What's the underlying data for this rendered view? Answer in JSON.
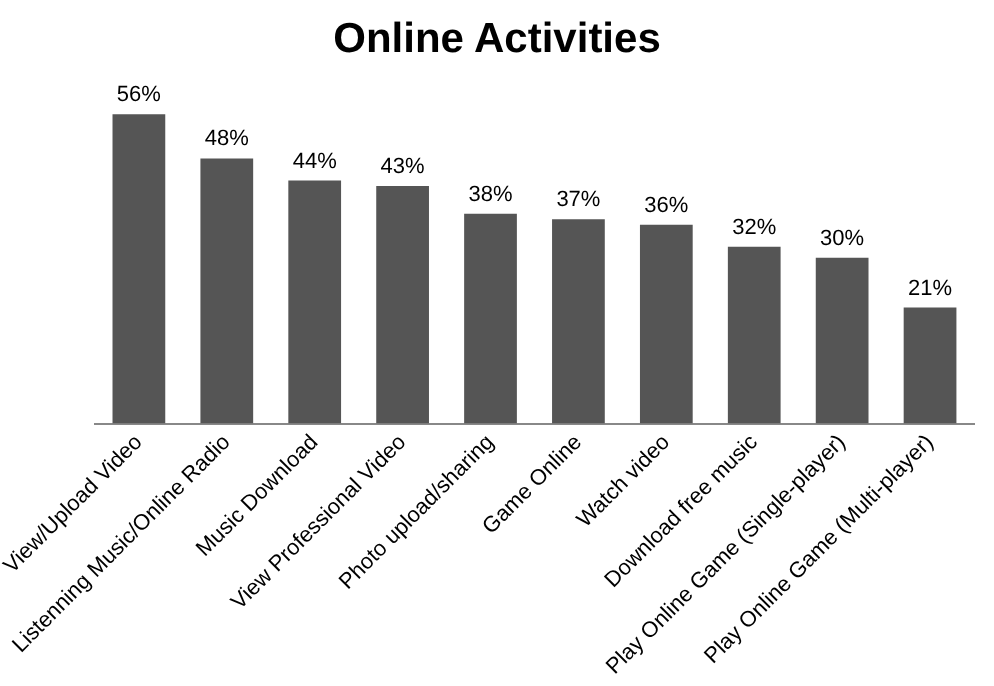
{
  "chart_data": {
    "type": "bar",
    "title": "Online Activities",
    "categories": [
      "View/Upload Video",
      "Listenning Music/Online Radio",
      "Music Download",
      "View Professional Video",
      "Photo upload/sharing",
      "Game Online",
      "Watch video",
      "Download free music",
      "Play Online Game (Single-player)",
      "Play Online Game (Multi-player)"
    ],
    "values": [
      56,
      48,
      44,
      43,
      38,
      37,
      36,
      32,
      30,
      21
    ],
    "value_labels": [
      "56%",
      "48%",
      "44%",
      "43%",
      "38%",
      "37%",
      "36%",
      "32%",
      "30%",
      "21%"
    ],
    "color": "#555555",
    "grid": false,
    "legend": false
  }
}
